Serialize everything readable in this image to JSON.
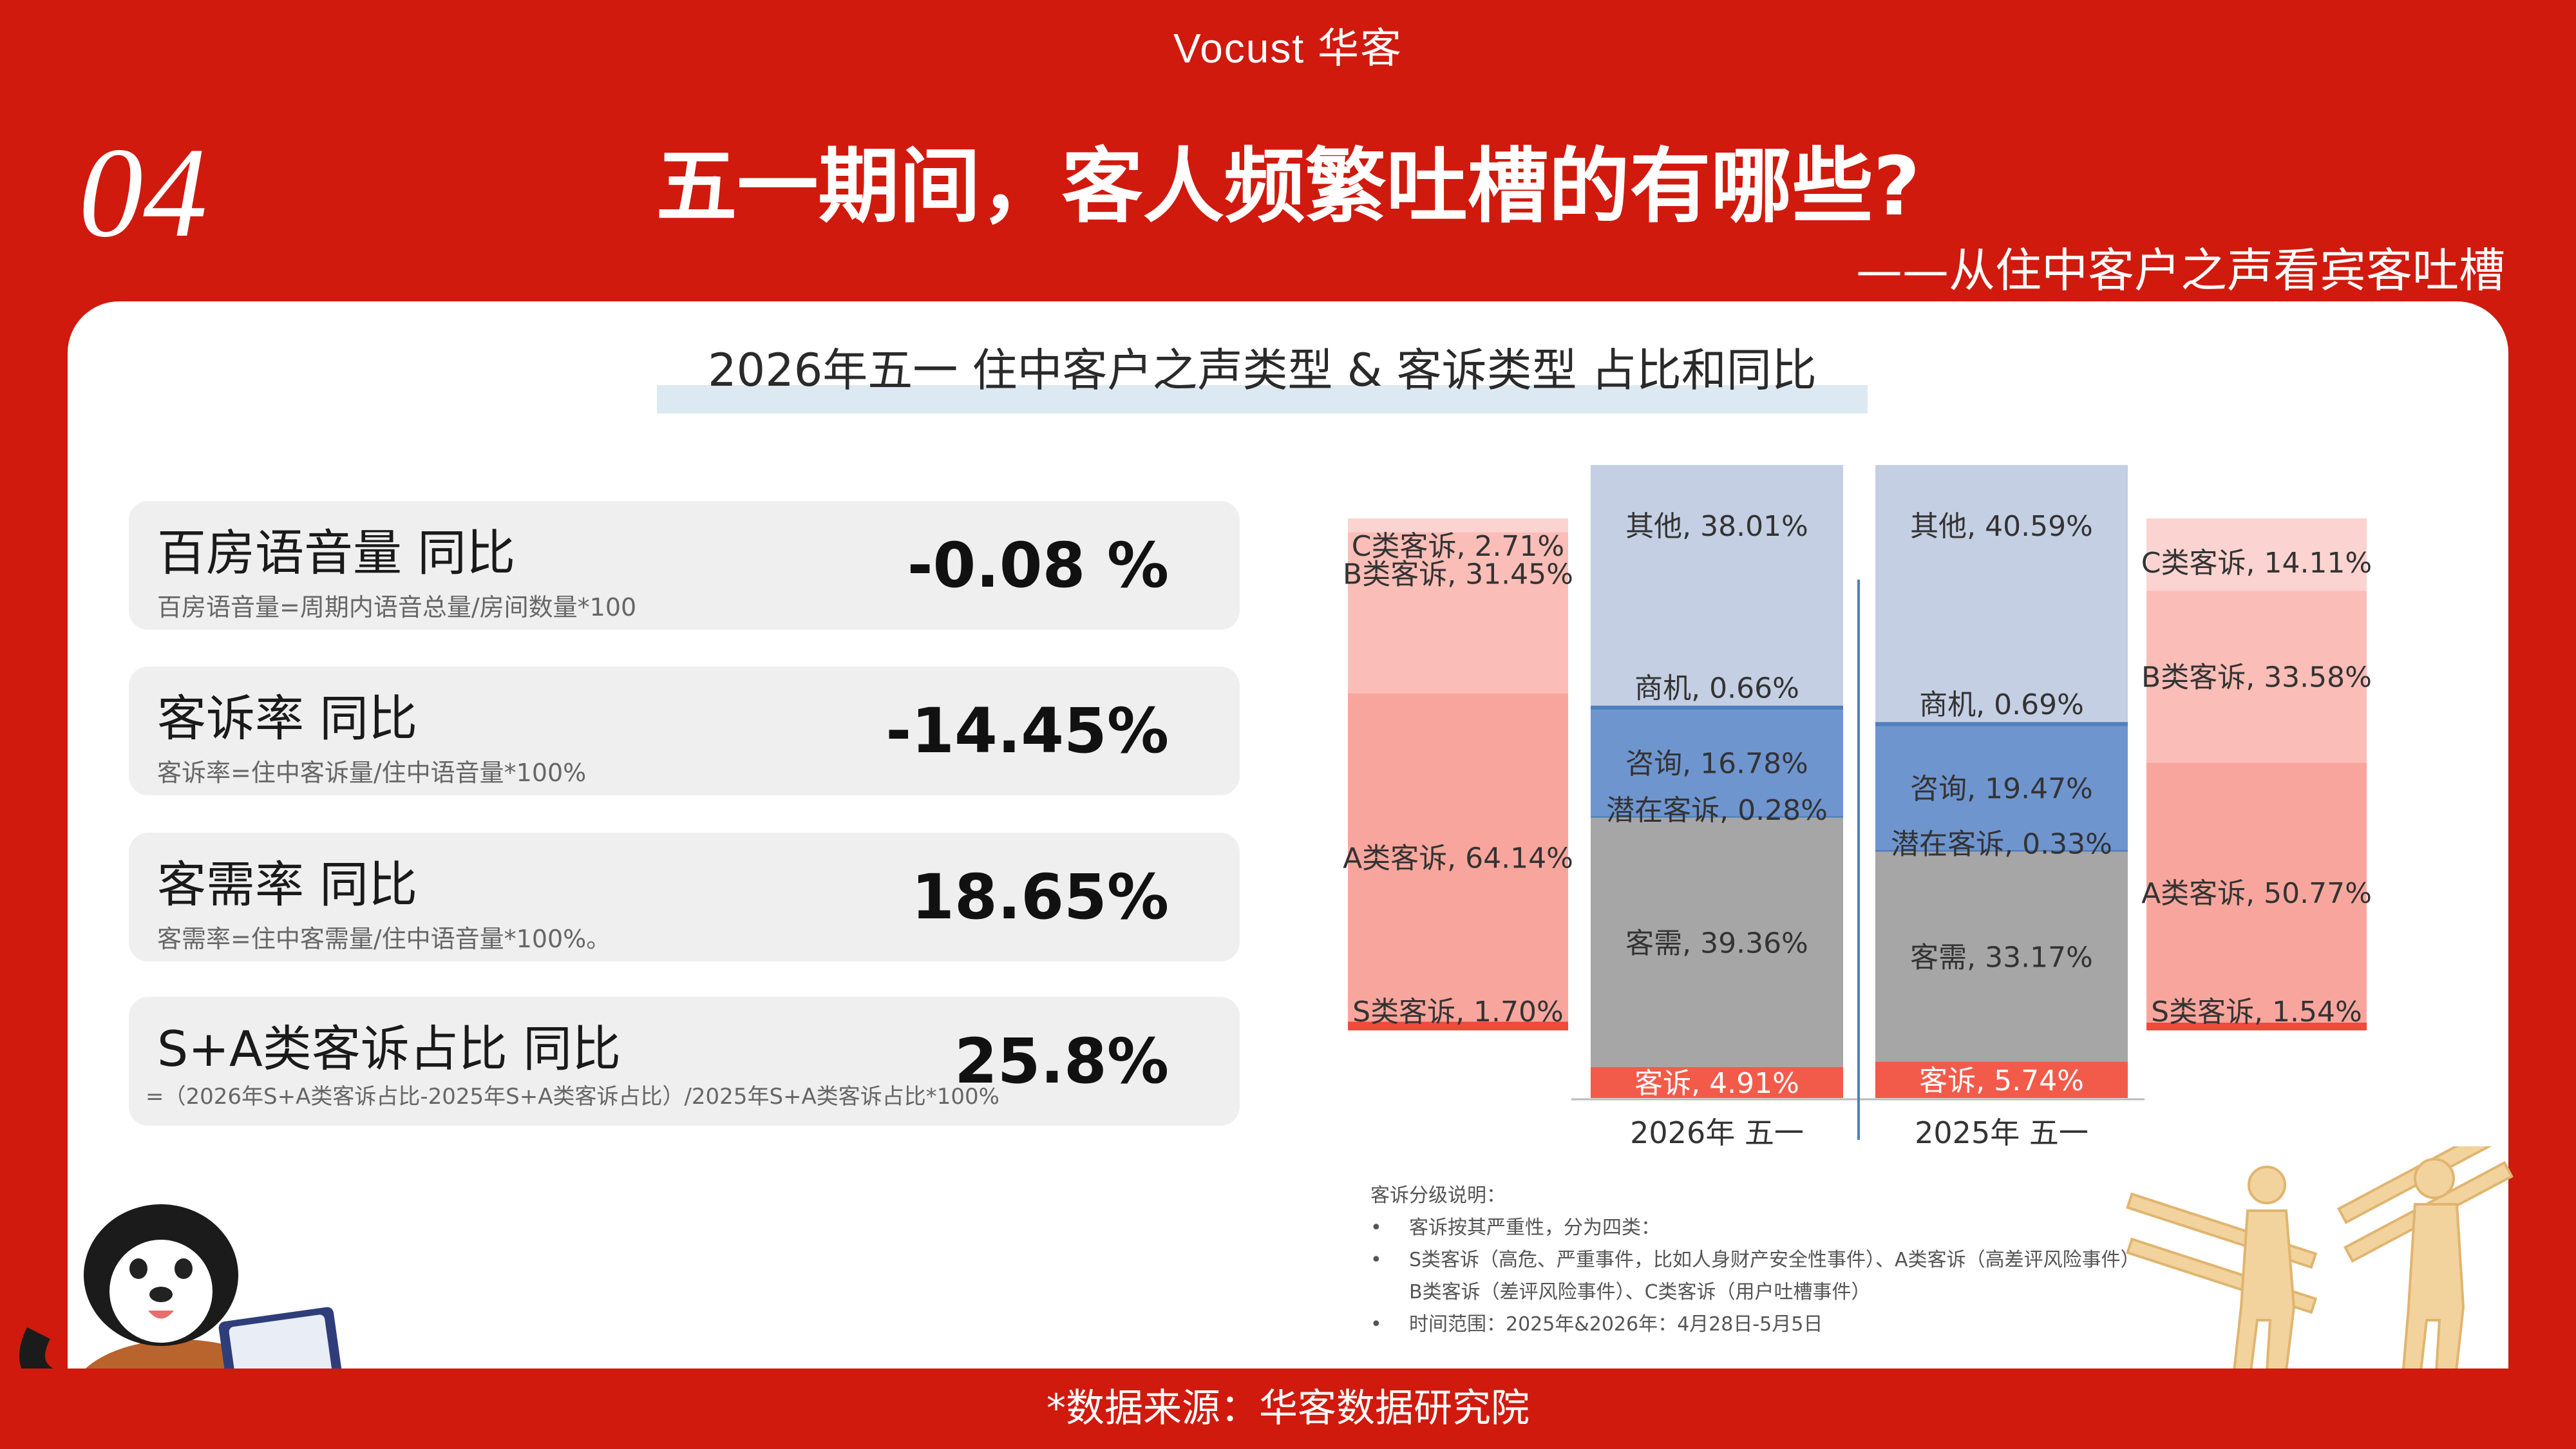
{
  "header": {
    "logo_text": "Vocust 华客",
    "section_number": "04",
    "title": "五一期间，客人频繁吐槽的有哪些?",
    "subtitle": "——从住中客户之声看宾客吐槽"
  },
  "kpis": [
    {
      "label": "百房语音量  同比",
      "formula": "百房语音量=周期内语音总量/房间数量*100",
      "value": "-0.08 %"
    },
    {
      "label": "客诉率  同比",
      "formula": "客诉率=住中客诉量/住中语音量*100%",
      "value": "-14.45%"
    },
    {
      "label": "客需率 同比",
      "formula": "客需率=住中客需量/住中语音量*100%。",
      "value": "18.65%"
    },
    {
      "label": "S+A类客诉占比 同比",
      "formula": "=（2026年S+A类客诉占比-2025年S+A类客诉占比）/2025年S+A类客诉占比*100%",
      "value": "25.8%"
    }
  ],
  "notes": {
    "title": "客诉分级说明：",
    "bullet": "•",
    "items": [
      "客诉按其严重性，分为四类：",
      "S类客诉（高危、严重事件，比如人身财产安全性事件）、A类客诉（高差评风险事件）",
      "B类客诉（差评风险事件）、C类客诉（用户吐槽事件）",
      "时间范围：2025年&2026年：4月28日-5月5日"
    ]
  },
  "footer": "*数据来源：华客数据研究院",
  "colors": {
    "brand_red": "#d01a0e",
    "other": "#c5cfe3",
    "business": "#4f7fbf",
    "consult": "#6f95cf",
    "potential": "#4f7fbf",
    "demand": "#a6a6a6",
    "complaint": "#f25b4a",
    "c_class": "#fbd3d0",
    "b_class": "#fbbdb7",
    "a_class": "#f8a69d",
    "s_class": "#f04a3b"
  },
  "chart_data": {
    "type": "bar",
    "title": "2026年五一  住中客户之声类型 & 客诉类型 占比和同比",
    "stacked": true,
    "unit": "%",
    "categories": [
      "2026年 五一",
      "2025年 五一"
    ],
    "voice_series": [
      {
        "name": "客诉",
        "values": [
          4.91,
          5.74
        ]
      },
      {
        "name": "客需",
        "values": [
          39.36,
          33.17
        ]
      },
      {
        "name": "潜在客诉",
        "values": [
          0.28,
          0.33
        ]
      },
      {
        "name": "咨询",
        "values": [
          16.78,
          19.47
        ]
      },
      {
        "name": "商机",
        "values": [
          0.66,
          0.69
        ]
      },
      {
        "name": "其他",
        "values": [
          38.01,
          40.59
        ]
      }
    ],
    "complaint_breakdown": [
      {
        "year": "2026",
        "series": [
          {
            "name": "S类客诉",
            "value": 1.7
          },
          {
            "name": "A类客诉",
            "value": 64.14
          },
          {
            "name": "B类客诉",
            "value": 31.45
          },
          {
            "name": "C类客诉",
            "value": 2.71
          }
        ]
      },
      {
        "year": "2025",
        "series": [
          {
            "name": "S类客诉",
            "value": 1.54
          },
          {
            "name": "A类客诉",
            "value": 50.77
          },
          {
            "name": "B类客诉",
            "value": 33.58
          },
          {
            "name": "C类客诉",
            "value": 14.11
          }
        ]
      }
    ]
  }
}
